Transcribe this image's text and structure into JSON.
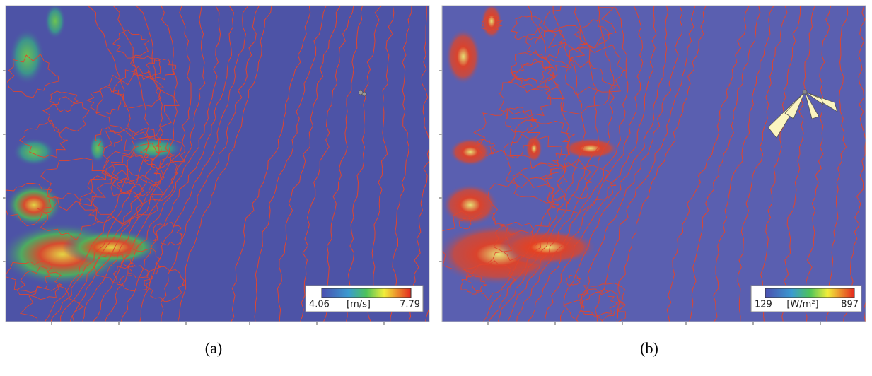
{
  "panels": [
    {
      "caption": "(a)",
      "legend": {
        "min": "4.06",
        "unit": "[m/s]",
        "max": "7.79"
      }
    },
    {
      "caption": "(b)",
      "legend": {
        "min": "129",
        "unit": "[W/m²]",
        "max": "897"
      }
    }
  ]
}
